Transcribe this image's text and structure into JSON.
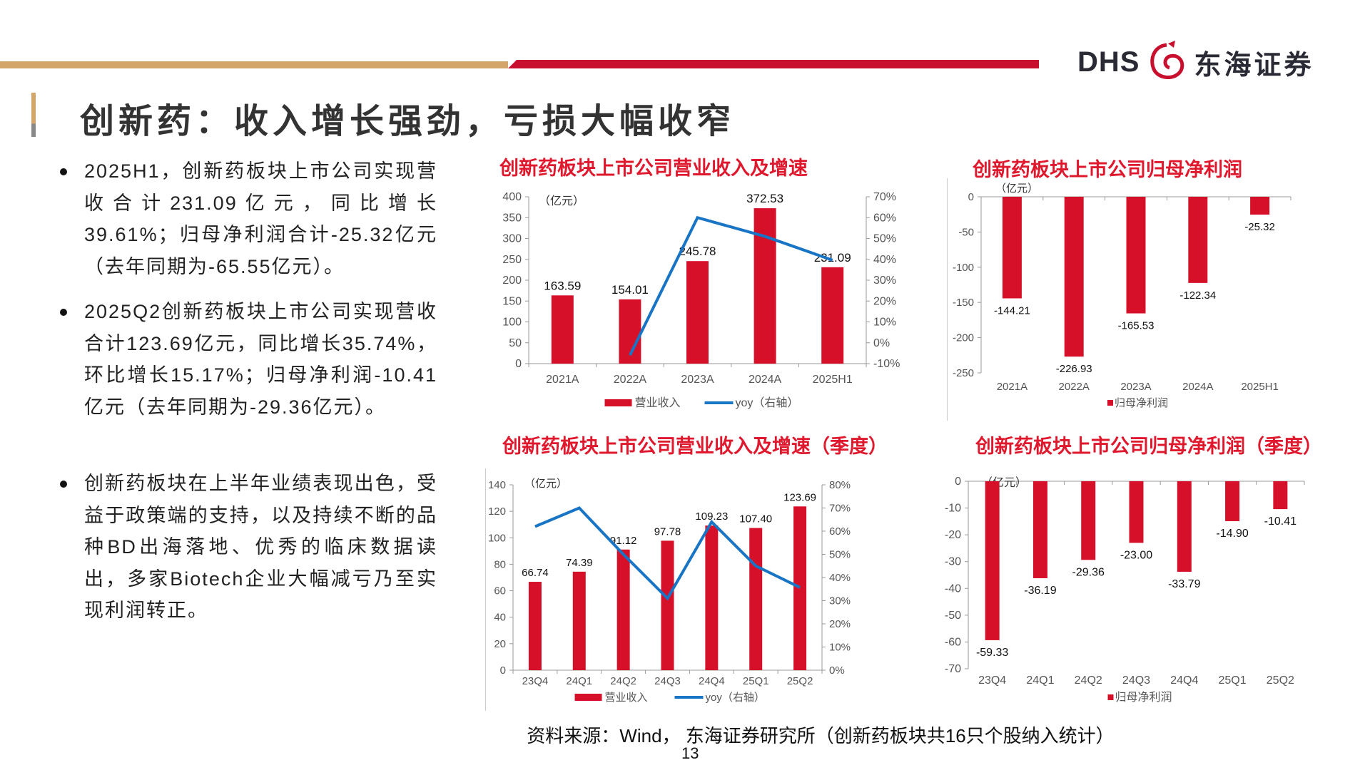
{
  "header": {
    "logo_text": "DHS",
    "logo_cn": "东海证券"
  },
  "page_title": "创新药：收入增长强劲，亏损大幅收窄",
  "bullets": [
    "2025H1，创新药板块上市公司实现营收合计231.09亿元，同比增长39.61%；归母净利润合计-25.32亿元（去年同期为-65.55亿元）。",
    "2025Q2创新药板块上市公司实现营收合计123.69亿元，同比增长35.74%，环比增长15.17%；归母净利润-10.41亿元（去年同期为-29.36亿元）。",
    "创新药板块在上半年业绩表现出色，受益于政策端的支持，以及持续不断的品种BD出海落地、优秀的临床数据读出，多家Biotech企业大幅减亏乃至实现利润转正。"
  ],
  "colors": {
    "bar": "#d7102a",
    "line": "#1874c4",
    "title": "#e0182d"
  },
  "chart_data": [
    {
      "type": "bar+line",
      "title": "创新药板块上市公司营业收入及增速",
      "unit": "（亿元）",
      "categories": [
        "2021A",
        "2022A",
        "2023A",
        "2024A",
        "2025H1"
      ],
      "series": [
        {
          "name": "营业收入",
          "type": "bar",
          "values": [
            163.59,
            154.01,
            245.78,
            372.53,
            231.09
          ]
        },
        {
          "name": "yoy（右轴）",
          "type": "line",
          "axis": "right",
          "values": [
            null,
            -6,
            60,
            51,
            39.6
          ]
        }
      ],
      "ylim": [
        0,
        400
      ],
      "ystep": 50,
      "y2lim": [
        -10,
        70
      ],
      "y2step": 10,
      "legend": "bottom"
    },
    {
      "type": "bar",
      "title": "创新药板块上市公司归母净利润",
      "unit": "（亿元）",
      "categories": [
        "2021A",
        "2022A",
        "2023A",
        "2024A",
        "2025H1"
      ],
      "series": [
        {
          "name": "归母净利润",
          "type": "bar",
          "values": [
            -144.21,
            -226.93,
            -165.53,
            -122.34,
            -25.32
          ]
        }
      ],
      "ylim": [
        -250,
        0
      ],
      "ystep": 50,
      "legend": "bottom"
    },
    {
      "type": "bar+line",
      "title": "创新药板块上市公司营业收入及增速（季度）",
      "unit": "（亿元）",
      "categories": [
        "23Q4",
        "24Q1",
        "24Q2",
        "24Q3",
        "24Q4",
        "25Q1",
        "25Q2"
      ],
      "series": [
        {
          "name": "营业收入",
          "type": "bar",
          "values": [
            66.74,
            74.39,
            91.12,
            97.78,
            109.23,
            107.4,
            123.69
          ]
        },
        {
          "name": "yoy（右轴）",
          "type": "line",
          "axis": "right",
          "values": [
            62,
            70,
            50,
            31,
            64,
            45,
            35.7
          ]
        }
      ],
      "ylim": [
        0,
        140
      ],
      "ystep": 20,
      "y2lim": [
        0,
        80
      ],
      "y2step": 10,
      "legend": "bottom"
    },
    {
      "type": "bar",
      "title": "创新药板块上市公司归母净利润（季度）",
      "unit": "（亿元）",
      "categories": [
        "23Q4",
        "24Q1",
        "24Q2",
        "24Q3",
        "24Q4",
        "25Q1",
        "25Q2"
      ],
      "series": [
        {
          "name": "归母净利润",
          "type": "bar",
          "values": [
            -59.33,
            -36.19,
            -29.36,
            -23.0,
            -33.79,
            -14.9,
            -10.41
          ]
        }
      ],
      "ylim": [
        -70,
        0
      ],
      "ystep": 10,
      "legend": "bottom"
    }
  ],
  "source": "资料来源：Wind， 东海证券研究所（创新药板块共16只个股纳入统计）",
  "page_number": "13"
}
